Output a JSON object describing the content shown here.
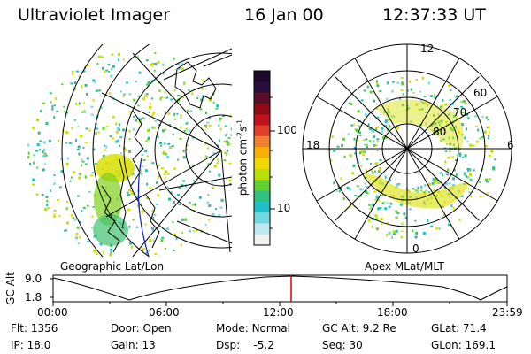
{
  "header": {
    "instrument": "Ultraviolet Imager",
    "date": "16 Jan 00",
    "time": "12:37:33 UT"
  },
  "left_panel": {
    "caption": "Geographic Lat/Lon"
  },
  "right_panel": {
    "caption": "Apex MLat/MLT",
    "mlt_labels": [
      "12",
      "18",
      "6",
      "0"
    ],
    "lat_labels": [
      "60",
      "70",
      "80"
    ]
  },
  "colorbar": {
    "unit_label": "photon cm",
    "unit_sup1": "-2",
    "unit_mid": "s",
    "unit_sup2": "-1",
    "ticks": [
      "100",
      "10"
    ],
    "colors": [
      "#1b0a2c",
      "#2a0f3e",
      "#5a0f28",
      "#8e0a14",
      "#c0121a",
      "#e0402a",
      "#f08030",
      "#f6b000",
      "#f0d800",
      "#b8e000",
      "#60d030",
      "#30c080",
      "#20c0c8",
      "#70d8e0",
      "#c0e8f0",
      "#f0f0f0"
    ]
  },
  "orbit_plot": {
    "ylabel": "GC Alt",
    "y_ticks": [
      "9.0",
      "1.8"
    ],
    "x_ticks": [
      "00:00",
      "06:00",
      "12:00",
      "18:00",
      "23:59"
    ],
    "current_time_marker_color": "#e00000"
  },
  "status": {
    "row1": [
      {
        "label": "Flt:",
        "value": "1356"
      },
      {
        "label": "Door:",
        "value": "Open"
      },
      {
        "label": "Mode:",
        "value": "Normal"
      },
      {
        "label": "GC Alt:",
        "value": "9.2 Re"
      },
      {
        "label": "GLat:",
        "value": "71.4"
      }
    ],
    "row2": [
      {
        "label": "IP:",
        "value": "18.0"
      },
      {
        "label": "Gain:",
        "value": "13"
      },
      {
        "label": "Dsp:",
        "value": "-5.2"
      },
      {
        "label": "Seq:",
        "value": "30"
      },
      {
        "label": "GLon:",
        "value": "169.1"
      }
    ]
  }
}
